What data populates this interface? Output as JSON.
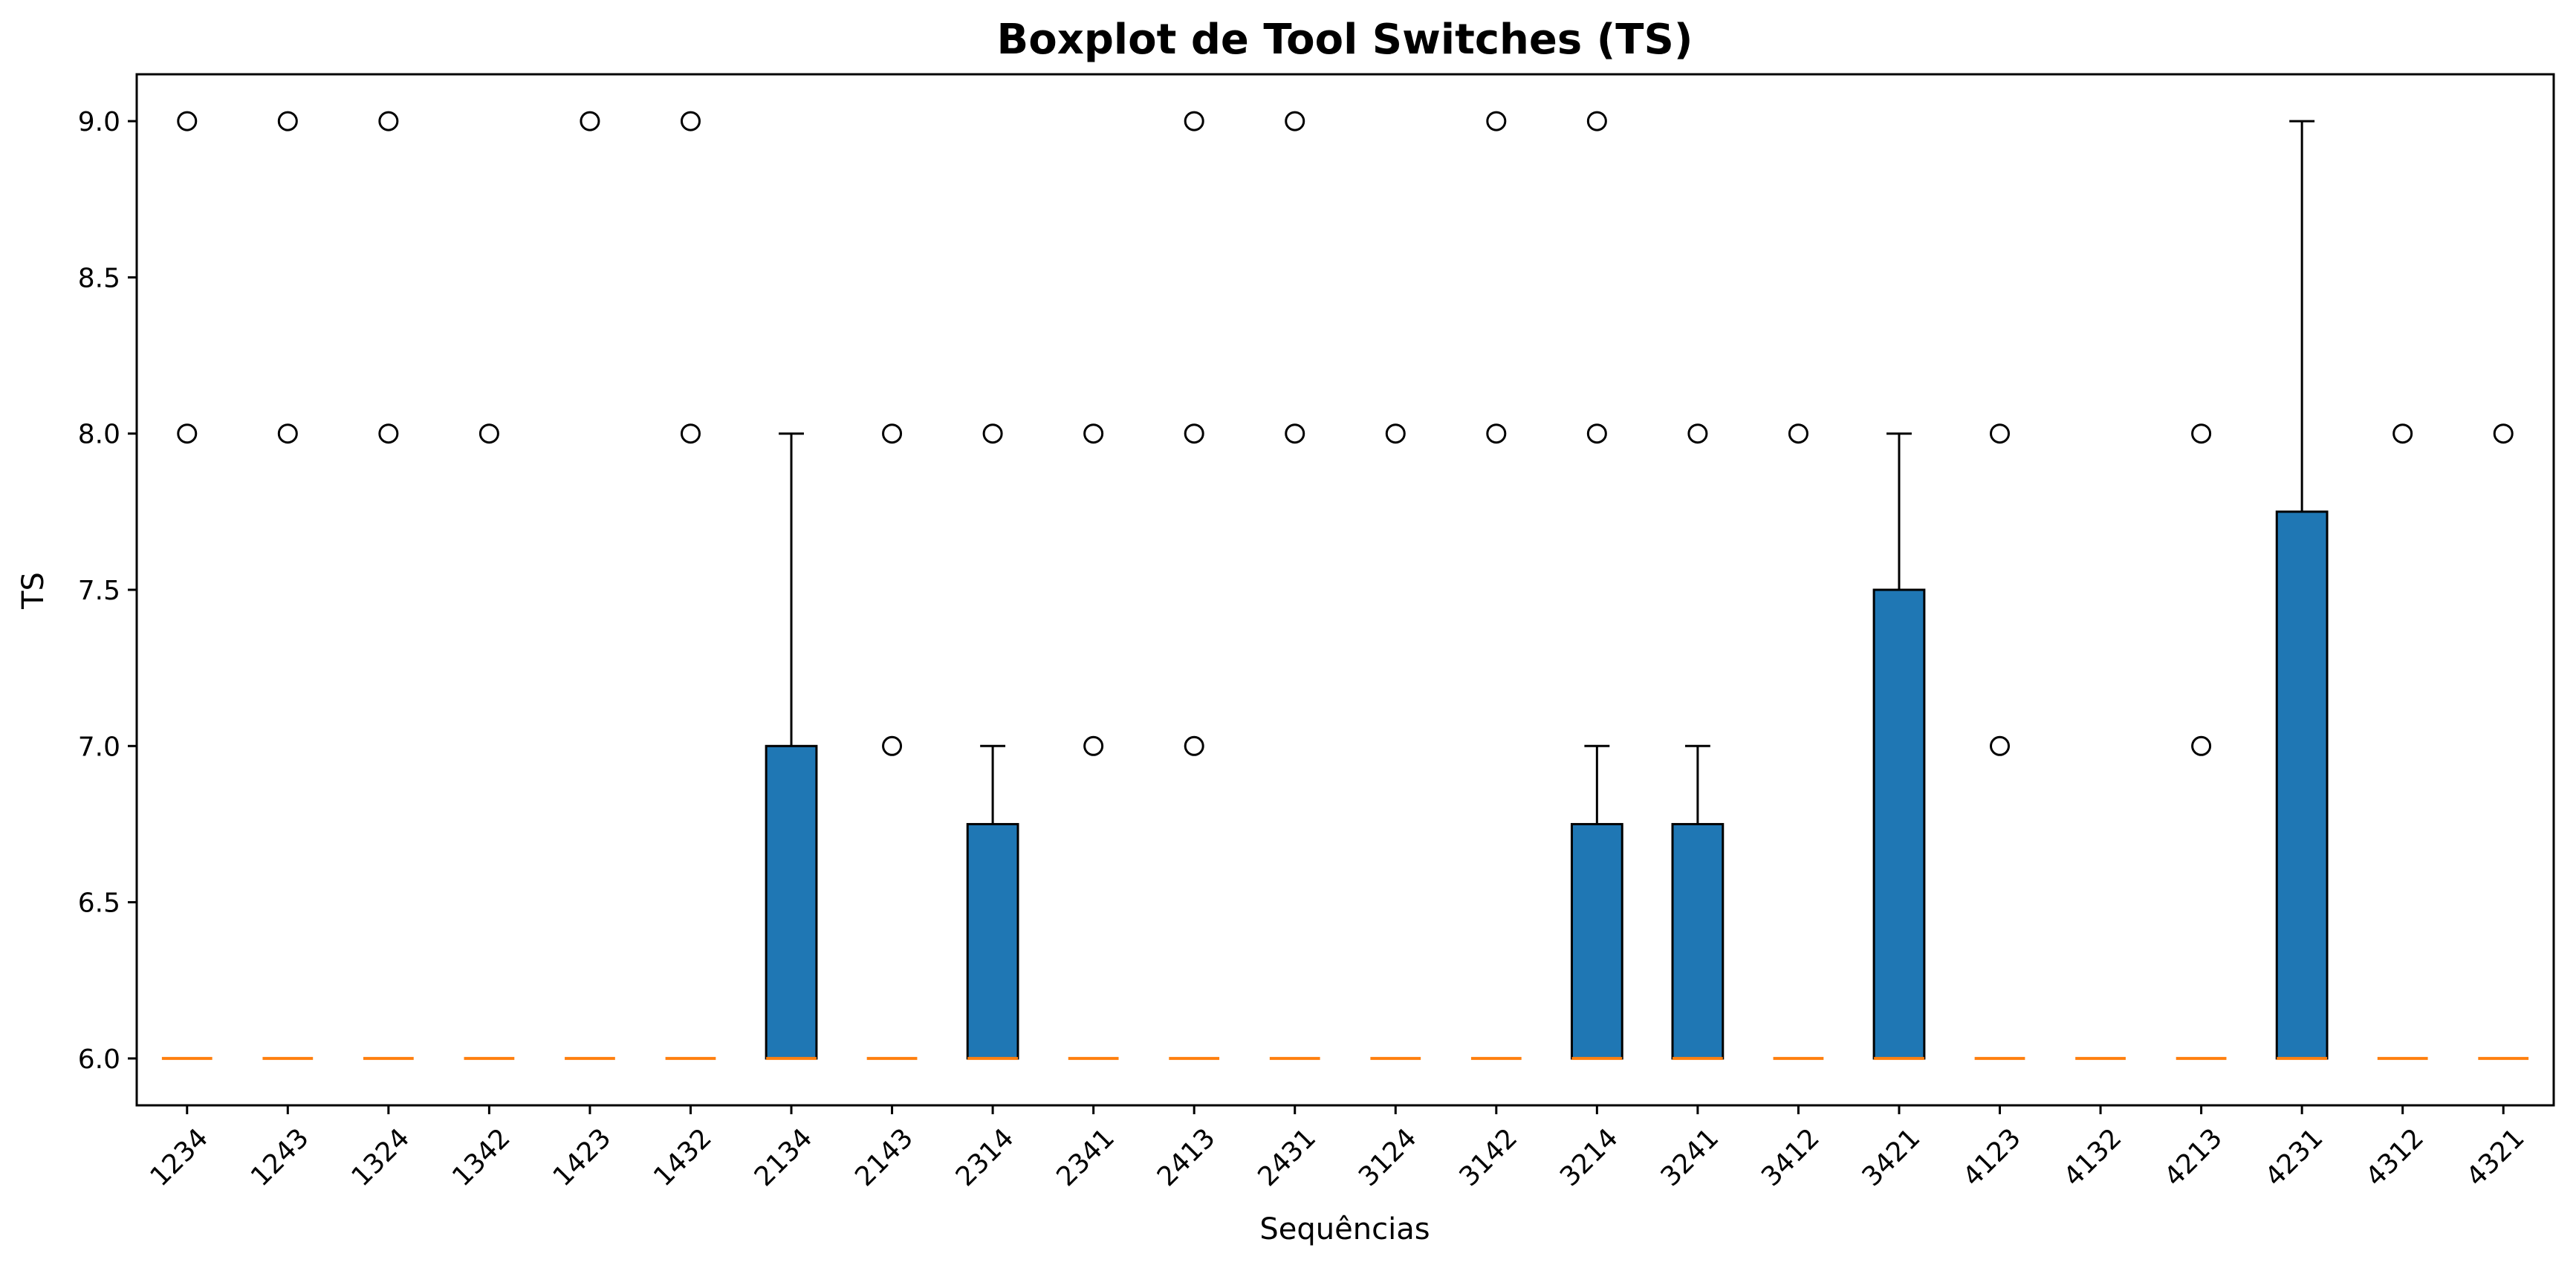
{
  "chart_data": {
    "type": "boxplot",
    "title": "Boxplot de Tool Switches (TS)",
    "xlabel": "Sequências",
    "ylabel": "TS",
    "ylim": [
      5.85,
      9.15
    ],
    "yticks": [
      "6.0",
      "6.5",
      "7.0",
      "7.5",
      "8.0",
      "8.5",
      "9.0"
    ],
    "grid": false,
    "colors": {
      "box_fill": "#1f77b4",
      "median": "#ff7f0e",
      "edge": "#000000"
    },
    "categories": [
      "1234",
      "1243",
      "1324",
      "1342",
      "1423",
      "1432",
      "2134",
      "2143",
      "2314",
      "2341",
      "2413",
      "2431",
      "3124",
      "3142",
      "3214",
      "3241",
      "3412",
      "3421",
      "4123",
      "4132",
      "4213",
      "4231",
      "4312",
      "4321"
    ],
    "boxes": [
      {
        "q1": 6,
        "median": 6,
        "q3": 6,
        "whisker_low": 6,
        "whisker_high": 6,
        "outliers": [
          8,
          9
        ]
      },
      {
        "q1": 6,
        "median": 6,
        "q3": 6,
        "whisker_low": 6,
        "whisker_high": 6,
        "outliers": [
          8,
          9
        ]
      },
      {
        "q1": 6,
        "median": 6,
        "q3": 6,
        "whisker_low": 6,
        "whisker_high": 6,
        "outliers": [
          8,
          9
        ]
      },
      {
        "q1": 6,
        "median": 6,
        "q3": 6,
        "whisker_low": 6,
        "whisker_high": 6,
        "outliers": [
          8
        ]
      },
      {
        "q1": 6,
        "median": 6,
        "q3": 6,
        "whisker_low": 6,
        "whisker_high": 6,
        "outliers": [
          9
        ]
      },
      {
        "q1": 6,
        "median": 6,
        "q3": 6,
        "whisker_low": 6,
        "whisker_high": 6,
        "outliers": [
          8,
          9
        ]
      },
      {
        "q1": 6,
        "median": 6,
        "q3": 7,
        "whisker_low": 6,
        "whisker_high": 8,
        "outliers": []
      },
      {
        "q1": 6,
        "median": 6,
        "q3": 6,
        "whisker_low": 6,
        "whisker_high": 6,
        "outliers": [
          7,
          8
        ]
      },
      {
        "q1": 6,
        "median": 6,
        "q3": 6.75,
        "whisker_low": 6,
        "whisker_high": 7,
        "outliers": [
          8
        ]
      },
      {
        "q1": 6,
        "median": 6,
        "q3": 6,
        "whisker_low": 6,
        "whisker_high": 6,
        "outliers": [
          7,
          8
        ]
      },
      {
        "q1": 6,
        "median": 6,
        "q3": 6,
        "whisker_low": 6,
        "whisker_high": 6,
        "outliers": [
          7,
          8,
          9
        ]
      },
      {
        "q1": 6,
        "median": 6,
        "q3": 6,
        "whisker_low": 6,
        "whisker_high": 6,
        "outliers": [
          8,
          9
        ]
      },
      {
        "q1": 6,
        "median": 6,
        "q3": 6,
        "whisker_low": 6,
        "whisker_high": 6,
        "outliers": [
          8
        ]
      },
      {
        "q1": 6,
        "median": 6,
        "q3": 6,
        "whisker_low": 6,
        "whisker_high": 6,
        "outliers": [
          8,
          9
        ]
      },
      {
        "q1": 6,
        "median": 6,
        "q3": 6.75,
        "whisker_low": 6,
        "whisker_high": 7,
        "outliers": [
          8,
          9
        ]
      },
      {
        "q1": 6,
        "median": 6,
        "q3": 6.75,
        "whisker_low": 6,
        "whisker_high": 7,
        "outliers": [
          8
        ]
      },
      {
        "q1": 6,
        "median": 6,
        "q3": 6,
        "whisker_low": 6,
        "whisker_high": 6,
        "outliers": [
          8
        ]
      },
      {
        "q1": 6,
        "median": 6,
        "q3": 7.5,
        "whisker_low": 6,
        "whisker_high": 8,
        "outliers": []
      },
      {
        "q1": 6,
        "median": 6,
        "q3": 6,
        "whisker_low": 6,
        "whisker_high": 6,
        "outliers": [
          7,
          8
        ]
      },
      {
        "q1": 6,
        "median": 6,
        "q3": 6,
        "whisker_low": 6,
        "whisker_high": 6,
        "outliers": []
      },
      {
        "q1": 6,
        "median": 6,
        "q3": 6,
        "whisker_low": 6,
        "whisker_high": 6,
        "outliers": [
          7,
          8
        ]
      },
      {
        "q1": 6,
        "median": 6,
        "q3": 7.75,
        "whisker_low": 6,
        "whisker_high": 9,
        "outliers": []
      },
      {
        "q1": 6,
        "median": 6,
        "q3": 6,
        "whisker_low": 6,
        "whisker_high": 6,
        "outliers": [
          8
        ]
      },
      {
        "q1": 6,
        "median": 6,
        "q3": 6,
        "whisker_low": 6,
        "whisker_high": 6,
        "outliers": [
          8
        ]
      }
    ]
  }
}
